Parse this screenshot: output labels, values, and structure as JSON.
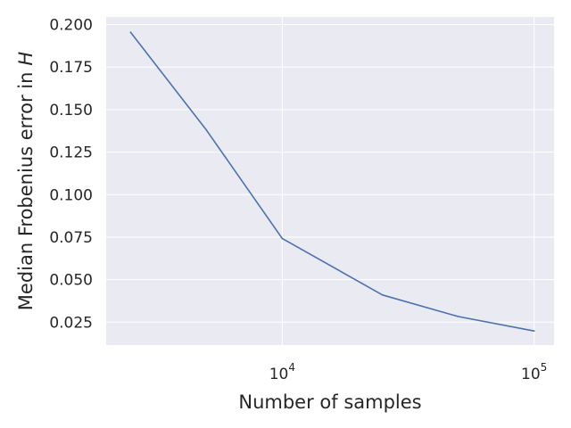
{
  "chart_data": {
    "type": "line",
    "xscale": "log",
    "xlabel": "Number of samples",
    "ylabel": "Median Frobenius error in",
    "ylabel_symbol": "H",
    "xlim": [
      2000,
      120000
    ],
    "ylim": [
      0.0115,
      0.2045
    ],
    "x_ticks": [
      {
        "value": 10000,
        "base": "10",
        "exponent": "4"
      },
      {
        "value": 100000,
        "base": "10",
        "exponent": "5"
      }
    ],
    "y_ticks": [
      {
        "value": 0.025,
        "label": "0.025"
      },
      {
        "value": 0.05,
        "label": "0.050"
      },
      {
        "value": 0.075,
        "label": "0.075"
      },
      {
        "value": 0.1,
        "label": "0.100"
      },
      {
        "value": 0.125,
        "label": "0.125"
      },
      {
        "value": 0.15,
        "label": "0.150"
      },
      {
        "value": 0.175,
        "label": "0.175"
      },
      {
        "value": 0.2,
        "label": "0.200"
      }
    ],
    "grid": true,
    "legend": "none",
    "colors": {
      "plot_background": "#eaeaf2",
      "grid": "#ffffff",
      "line": "#4c72b0",
      "text": "#262626"
    },
    "series": [
      {
        "x": [
          2500,
          5000,
          10000,
          25000,
          50000,
          100000
        ],
        "y": [
          0.1955,
          0.138,
          0.0742,
          0.041,
          0.0283,
          0.0198
        ]
      }
    ]
  }
}
